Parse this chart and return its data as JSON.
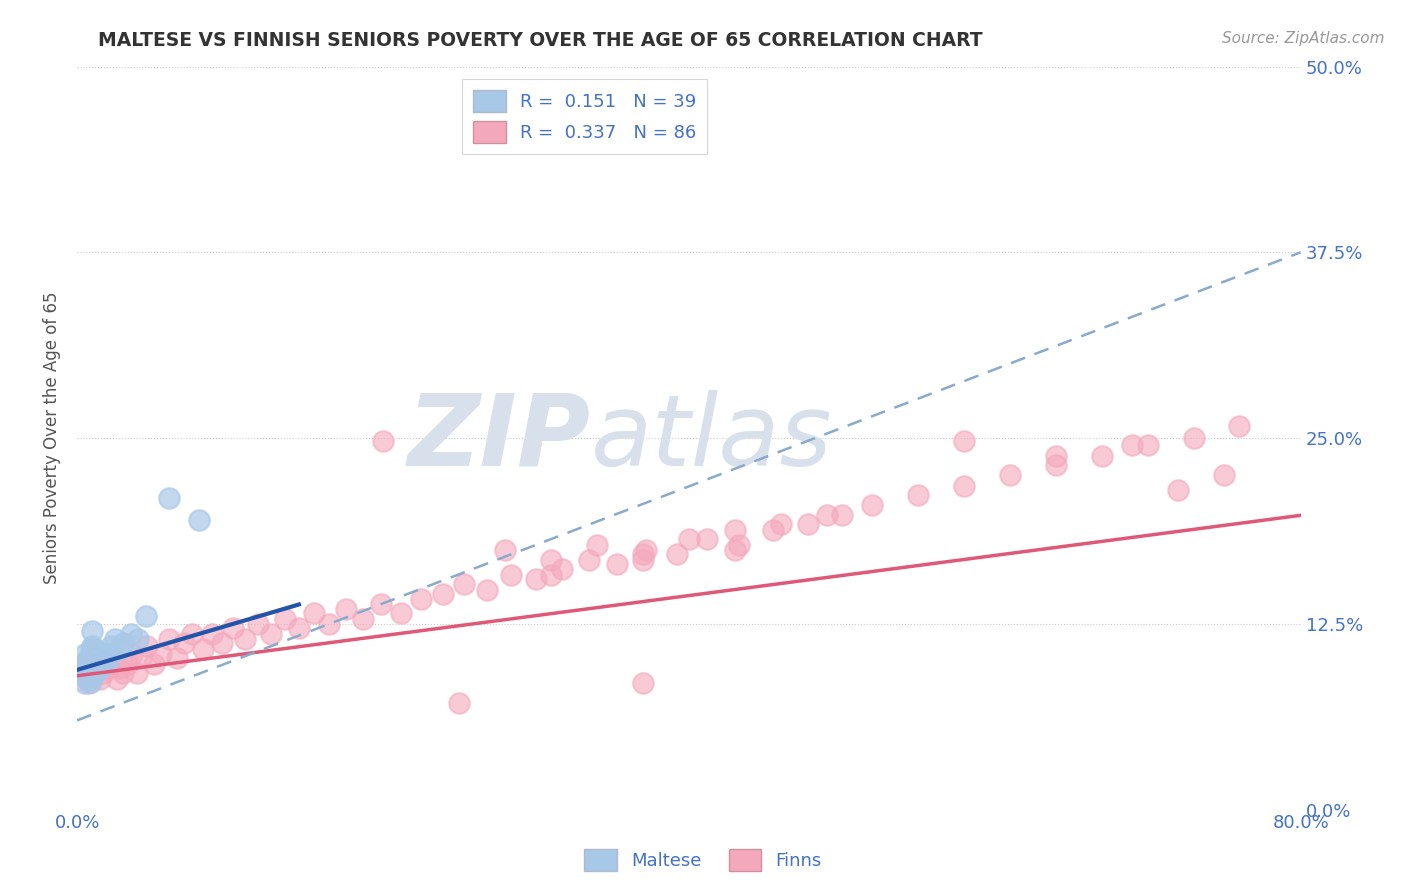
{
  "title": "MALTESE VS FINNISH SENIORS POVERTY OVER THE AGE OF 65 CORRELATION CHART",
  "source": "Source: ZipAtlas.com",
  "ylabel": "Seniors Poverty Over the Age of 65",
  "xlim": [
    0.0,
    0.8
  ],
  "ylim": [
    0.0,
    0.5
  ],
  "yticks": [
    0.0,
    0.125,
    0.25,
    0.375,
    0.5
  ],
  "ytick_labels": [
    "0.0%",
    "12.5%",
    "25.0%",
    "37.5%",
    "50.0%"
  ],
  "legend_R1": "0.151",
  "legend_N1": "39",
  "legend_R2": "0.337",
  "legend_N2": "86",
  "maltese_color": "#a8c8e8",
  "finns_color": "#f4a8bc",
  "maltese_line_color": "#2255aa",
  "finns_line_color": "#e05878",
  "dashed_line_color": "#88aacc",
  "background_color": "#ffffff",
  "grid_color": "#cccccc",
  "title_color": "#333333",
  "axis_label_color": "#555555",
  "tick_label_color": "#4472c4",
  "watermark_color": "#d8e0ec",
  "maltese_x": [
    0.005,
    0.005,
    0.005,
    0.006,
    0.006,
    0.007,
    0.007,
    0.008,
    0.008,
    0.009,
    0.009,
    0.009,
    0.01,
    0.01,
    0.01,
    0.01,
    0.011,
    0.011,
    0.012,
    0.012,
    0.013,
    0.013,
    0.014,
    0.015,
    0.015,
    0.016,
    0.017,
    0.018,
    0.019,
    0.02,
    0.022,
    0.025,
    0.028,
    0.03,
    0.035,
    0.04,
    0.045,
    0.06,
    0.08
  ],
  "maltese_y": [
    0.095,
    0.085,
    0.105,
    0.09,
    0.1,
    0.088,
    0.098,
    0.092,
    0.102,
    0.086,
    0.096,
    0.108,
    0.09,
    0.1,
    0.11,
    0.12,
    0.095,
    0.105,
    0.098,
    0.108,
    0.093,
    0.103,
    0.1,
    0.095,
    0.105,
    0.1,
    0.098,
    0.102,
    0.105,
    0.1,
    0.11,
    0.115,
    0.108,
    0.112,
    0.118,
    0.115,
    0.13,
    0.21,
    0.195
  ],
  "finns_x": [
    0.005,
    0.006,
    0.007,
    0.008,
    0.009,
    0.01,
    0.012,
    0.013,
    0.015,
    0.017,
    0.019,
    0.021,
    0.023,
    0.026,
    0.028,
    0.03,
    0.033,
    0.036,
    0.039,
    0.042,
    0.046,
    0.05,
    0.055,
    0.06,
    0.065,
    0.07,
    0.075,
    0.082,
    0.088,
    0.095,
    0.102,
    0.11,
    0.118,
    0.127,
    0.136,
    0.145,
    0.155,
    0.165,
    0.176,
    0.187,
    0.199,
    0.212,
    0.225,
    0.239,
    0.253,
    0.268,
    0.284,
    0.3,
    0.317,
    0.335,
    0.353,
    0.372,
    0.392,
    0.412,
    0.433,
    0.455,
    0.478,
    0.5,
    0.28,
    0.31,
    0.34,
    0.37,
    0.4,
    0.43,
    0.46,
    0.49,
    0.52,
    0.55,
    0.58,
    0.61,
    0.64,
    0.67,
    0.7,
    0.73,
    0.76,
    0.31,
    0.37,
    0.43,
    0.58,
    0.64,
    0.69,
    0.72,
    0.75,
    0.37,
    0.2,
    0.25
  ],
  "finns_y": [
    0.095,
    0.088,
    0.092,
    0.085,
    0.098,
    0.09,
    0.102,
    0.095,
    0.088,
    0.092,
    0.098,
    0.095,
    0.102,
    0.088,
    0.095,
    0.092,
    0.098,
    0.105,
    0.092,
    0.102,
    0.11,
    0.098,
    0.105,
    0.115,
    0.102,
    0.112,
    0.118,
    0.108,
    0.118,
    0.112,
    0.122,
    0.115,
    0.125,
    0.118,
    0.128,
    0.122,
    0.132,
    0.125,
    0.135,
    0.128,
    0.138,
    0.132,
    0.142,
    0.145,
    0.152,
    0.148,
    0.158,
    0.155,
    0.162,
    0.168,
    0.165,
    0.175,
    0.172,
    0.182,
    0.178,
    0.188,
    0.192,
    0.198,
    0.175,
    0.168,
    0.178,
    0.172,
    0.182,
    0.188,
    0.192,
    0.198,
    0.205,
    0.212,
    0.218,
    0.225,
    0.232,
    0.238,
    0.245,
    0.25,
    0.258,
    0.158,
    0.168,
    0.175,
    0.248,
    0.238,
    0.245,
    0.215,
    0.225,
    0.085,
    0.248,
    0.072
  ],
  "maltese_trend_x": [
    0.0,
    0.145
  ],
  "maltese_trend_y": [
    0.094,
    0.138
  ],
  "finns_solid_trend_x": [
    0.0,
    0.8
  ],
  "finns_solid_trend_y": [
    0.09,
    0.198
  ],
  "finns_dashed_trend_x": [
    0.0,
    0.8
  ],
  "finns_dashed_trend_y": [
    0.06,
    0.375
  ]
}
